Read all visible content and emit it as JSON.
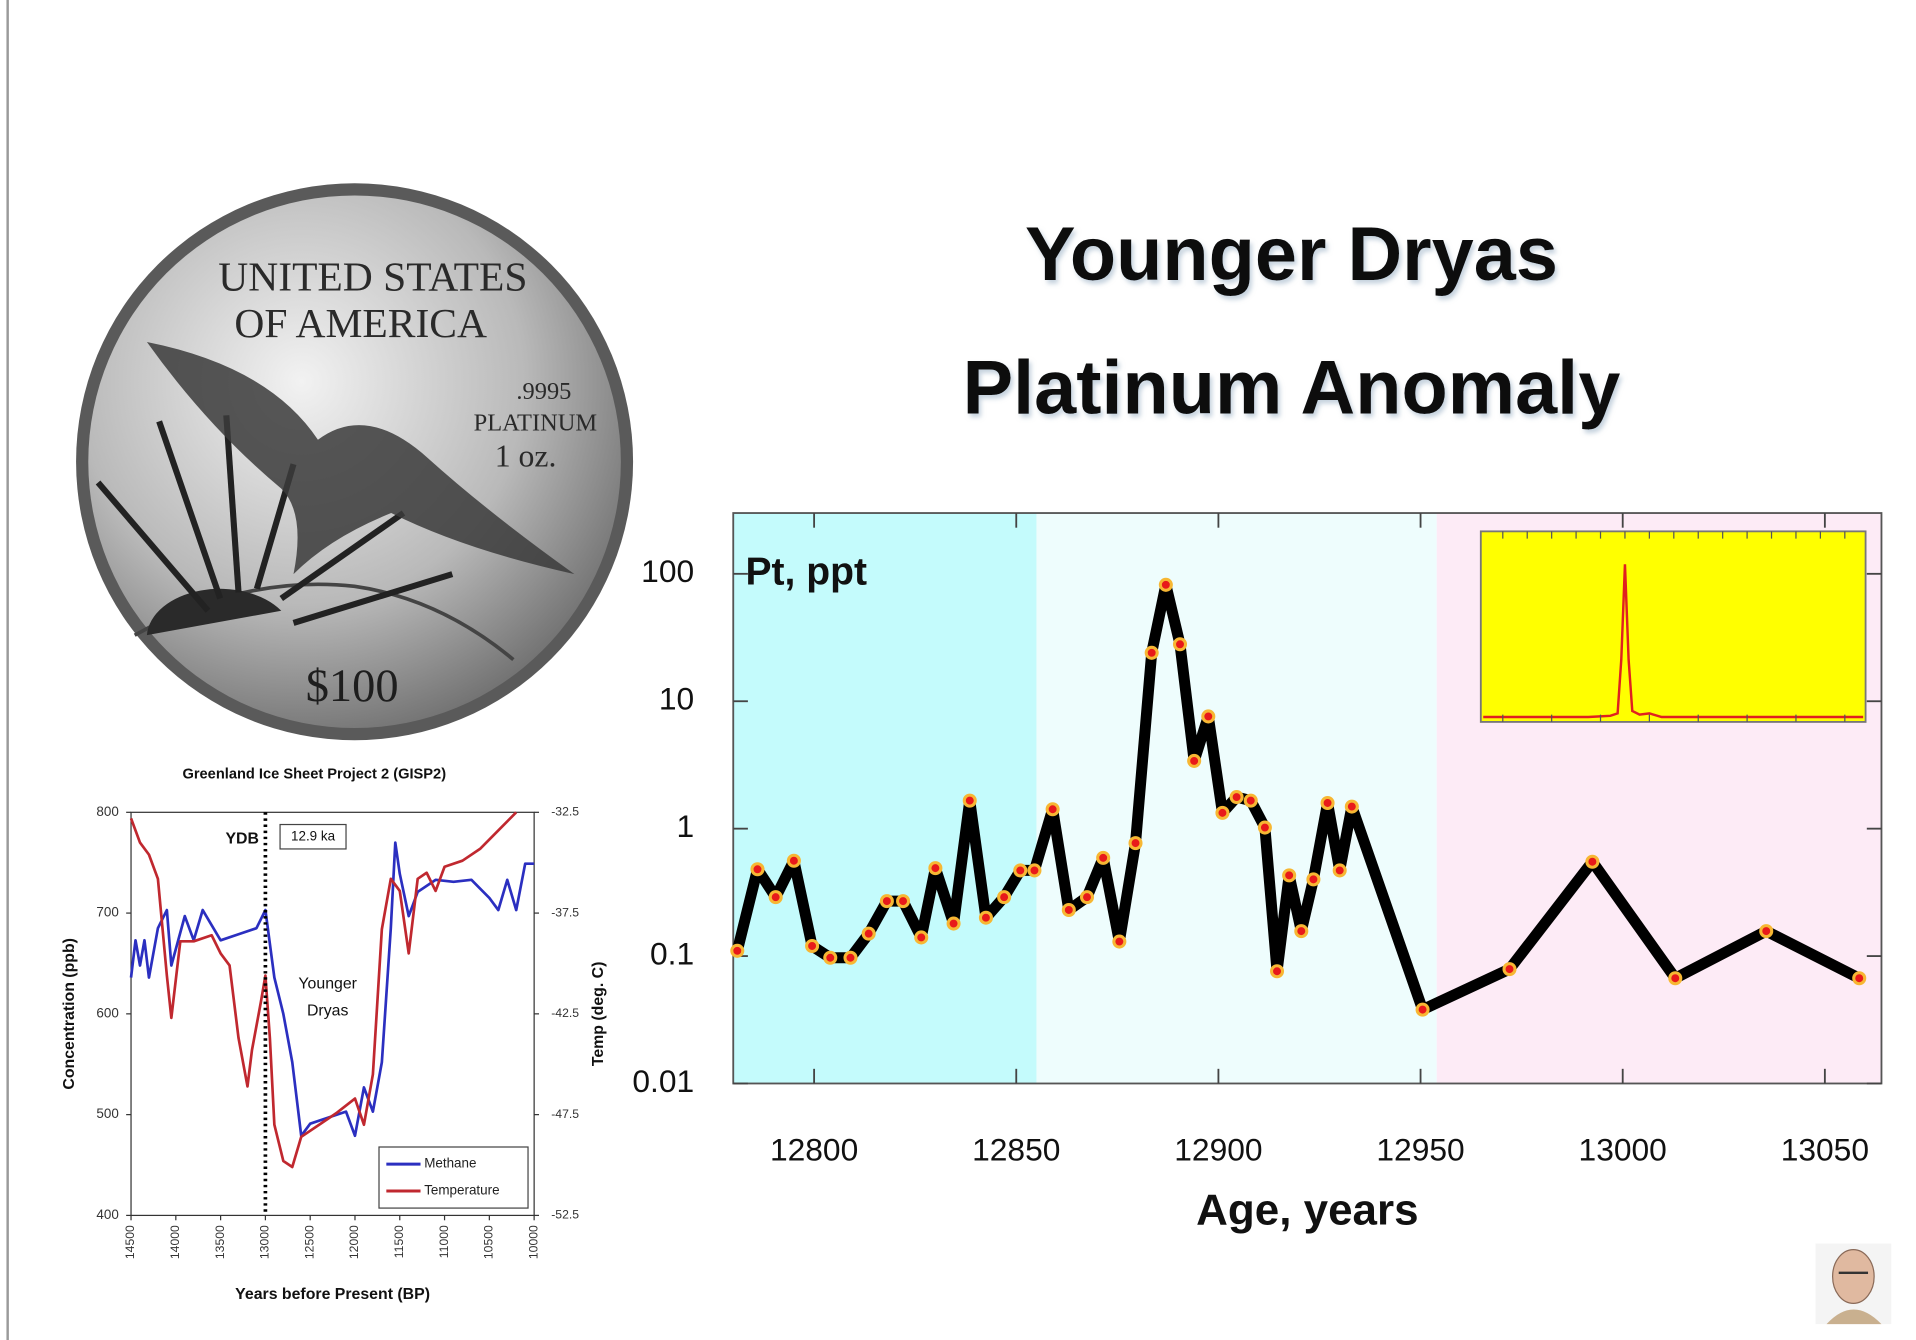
{
  "slide": {
    "title": [
      "Younger Dryas",
      "Platinum Anomaly"
    ],
    "coin": [
      "UNITED STATES",
      "OF AMERICA",
      ".9995",
      "PLATINUM",
      "1 oz.",
      "$100"
    ]
  },
  "chart_data": [
    {
      "type": "line",
      "label": "Pt, ppt",
      "x_label": "Age, years",
      "xlim": [
        12780,
        13064
      ],
      "xticks": [
        12800,
        12850,
        12900,
        12950,
        13000,
        13050
      ],
      "ylim": [
        0.01,
        300
      ],
      "yticks": [
        0.01,
        0.1,
        1,
        10,
        100
      ],
      "log_scale": true,
      "bands": [
        {
          "from": 12780,
          "to": 12855,
          "color": "#c4fbfc"
        },
        {
          "from": 12855,
          "to": 12954,
          "color": "#eefdfd"
        },
        {
          "from": 12954,
          "to": 13064,
          "color": "#fdebf6"
        }
      ],
      "series": [
        {
          "color": "#000000",
          "marker_color": "#e8191a",
          "x": [
            12781,
            12786,
            12790.5,
            12795,
            12799.5,
            12804,
            12809,
            12813.5,
            12818,
            12822,
            12826.5,
            12830,
            12834.5,
            12838.5,
            12842.5,
            12847,
            12851,
            12854.5,
            12859,
            12863,
            12867.5,
            12871.5,
            12875.5,
            12879.5,
            12883.5,
            12887,
            12890.5,
            12894,
            12897.5,
            12901,
            12904.5,
            12908,
            12911.5,
            12914.5,
            12917.5,
            12920.5,
            12923.5,
            12927,
            12930,
            12933,
            12950.5,
            12972,
            12992.5,
            13013,
            13035.5,
            13058.5
          ],
          "values": [
            0.11,
            0.48,
            0.29,
            0.56,
            0.12,
            0.097,
            0.097,
            0.15,
            0.27,
            0.27,
            0.14,
            0.49,
            0.18,
            1.66,
            0.2,
            0.29,
            0.47,
            0.47,
            1.42,
            0.23,
            0.29,
            0.59,
            0.13,
            0.77,
            24,
            82,
            28,
            3.4,
            7.6,
            1.33,
            1.77,
            1.66,
            1.02,
            0.076,
            0.43,
            0.157,
            0.4,
            1.59,
            0.47,
            1.49,
            0.038,
            0.079,
            0.55,
            0.067,
            0.157,
            0.067
          ]
        }
      ]
    },
    {
      "type": "line",
      "title": "Greenland Ice Sheet Project 2 (GISP2)",
      "x_label": "Years before Present (BP)",
      "y_label": "Concentration (ppb)",
      "y2_label": "Temp (deg. C)",
      "xlim": [
        14500,
        10000
      ],
      "xticks": [
        14500,
        14000,
        13500,
        13000,
        12500,
        12000,
        11500,
        11000,
        10500,
        10000
      ],
      "ylim": [
        400,
        800
      ],
      "yticks": [
        400,
        500,
        600,
        700,
        800
      ],
      "y2lim": [
        -52.5,
        -32.5
      ],
      "y2ticks": [
        -32.5,
        -37.5,
        -42.5,
        -47.5,
        -52.5
      ],
      "vline": 13000,
      "annotations": [
        "YDB",
        "12.9 ka",
        "Younger",
        "Dryas"
      ],
      "legend": "lower right",
      "series": [
        {
          "name": "Methane",
          "color": "#2b2fc0",
          "x": [
            14500,
            14450,
            14400,
            14350,
            14300,
            14200,
            14100,
            14050,
            13900,
            13800,
            13700,
            13500,
            13300,
            13100,
            13000,
            12900,
            12800,
            12700,
            12600,
            12500,
            12300,
            12100,
            12000,
            11900,
            11800,
            11700,
            11600,
            11550,
            11500,
            11400,
            11300,
            11100,
            10900,
            10700,
            10500,
            10400,
            10300,
            10200,
            10100,
            10000
          ],
          "values": [
            636,
            673,
            648,
            673,
            636,
            685,
            703,
            648,
            697,
            673,
            703,
            673,
            679,
            685,
            703,
            636,
            600,
            552,
            479,
            491,
            497,
            503,
            479,
            527,
            503,
            552,
            685,
            770,
            739,
            697,
            721,
            733,
            731,
            733,
            715,
            703,
            733,
            703,
            749,
            749
          ]
        },
        {
          "name": "Temperature",
          "color": "#c0282f",
          "axis": "y2",
          "x": [
            14500,
            14400,
            14300,
            14200,
            14100,
            14050,
            13950,
            13800,
            13600,
            13500,
            13400,
            13300,
            13200,
            13150,
            13050,
            13000,
            12950,
            12900,
            12800,
            12700,
            12600,
            12400,
            12200,
            12000,
            11900,
            11800,
            11700,
            11600,
            11500,
            11400,
            11300,
            11200,
            11100,
            11000,
            10800,
            10600,
            10400,
            10200
          ],
          "values": [
            -32.8,
            -34.0,
            -34.6,
            -35.8,
            -40.6,
            -42.7,
            -38.9,
            -38.9,
            -38.6,
            -39.5,
            -40.1,
            -43.7,
            -46.1,
            -44.3,
            -41.9,
            -40.6,
            -43.7,
            -48.0,
            -49.8,
            -50.1,
            -48.6,
            -48.0,
            -47.4,
            -46.7,
            -48.0,
            -45.5,
            -38.3,
            -35.8,
            -36.4,
            -39.5,
            -35.8,
            -35.5,
            -36.4,
            -35.2,
            -34.9,
            -34.3,
            -33.4,
            -32.5
          ]
        }
      ]
    }
  ]
}
